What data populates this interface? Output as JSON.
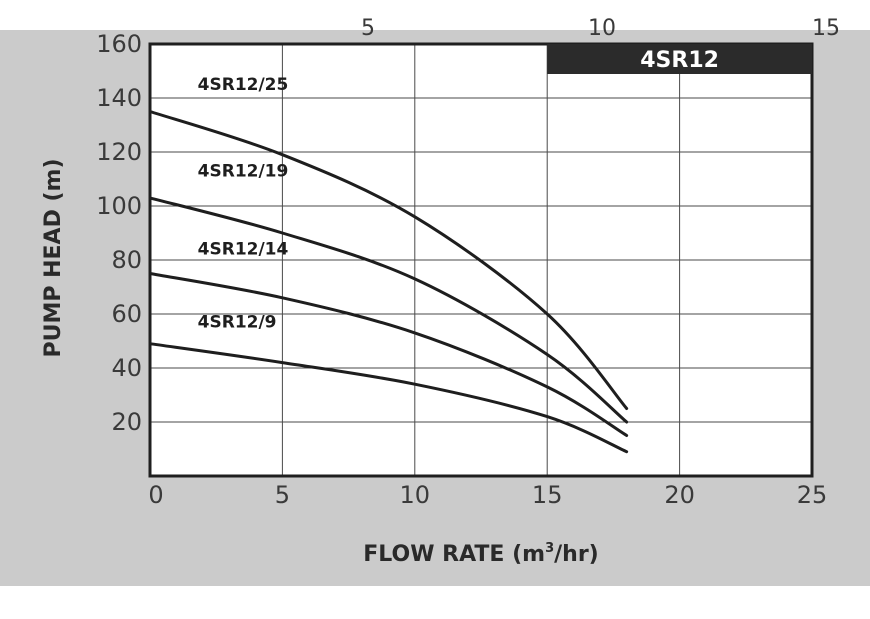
{
  "top_fragments": [
    "5",
    "10",
    "15"
  ],
  "chart_data": {
    "type": "line",
    "title": "4SR12",
    "xlabel": "FLOW RATE (m",
    "xlabel_sup": "3",
    "xlabel_tail": "/hr)",
    "ylabel": "PUMP HEAD (m)",
    "xlim": [
      0,
      25
    ],
    "ylim": [
      0,
      160
    ],
    "xticks": [
      0,
      5,
      10,
      15,
      20,
      25
    ],
    "yticks": [
      20,
      40,
      60,
      80,
      100,
      120,
      140,
      160
    ],
    "grid": true,
    "series": [
      {
        "name": "4SR12/25",
        "x": [
          0,
          5,
          10,
          15,
          18
        ],
        "y": [
          135,
          119,
          96,
          60,
          25
        ]
      },
      {
        "name": "4SR12/19",
        "x": [
          0,
          5,
          10,
          15,
          18
        ],
        "y": [
          103,
          90,
          73,
          45,
          20
        ]
      },
      {
        "name": "4SR12/14",
        "x": [
          0,
          5,
          10,
          15,
          18
        ],
        "y": [
          75,
          66,
          53,
          33,
          15
        ]
      },
      {
        "name": "4SR12/9",
        "x": [
          0,
          5,
          10,
          15,
          18
        ],
        "y": [
          49,
          42,
          34,
          22,
          9
        ]
      }
    ],
    "label_positions_data": [
      {
        "x": 1.8,
        "y": 143
      },
      {
        "x": 1.8,
        "y": 111
      },
      {
        "x": 1.8,
        "y": 82
      },
      {
        "x": 1.8,
        "y": 55
      }
    ],
    "colors": {
      "background_band": "#cbcbcb",
      "plot": "#ffffff",
      "frame": "#1f1f1f",
      "grid": "#4a4a4a",
      "curve": "#1e1e1e",
      "badge": "#2b2b2b"
    }
  }
}
